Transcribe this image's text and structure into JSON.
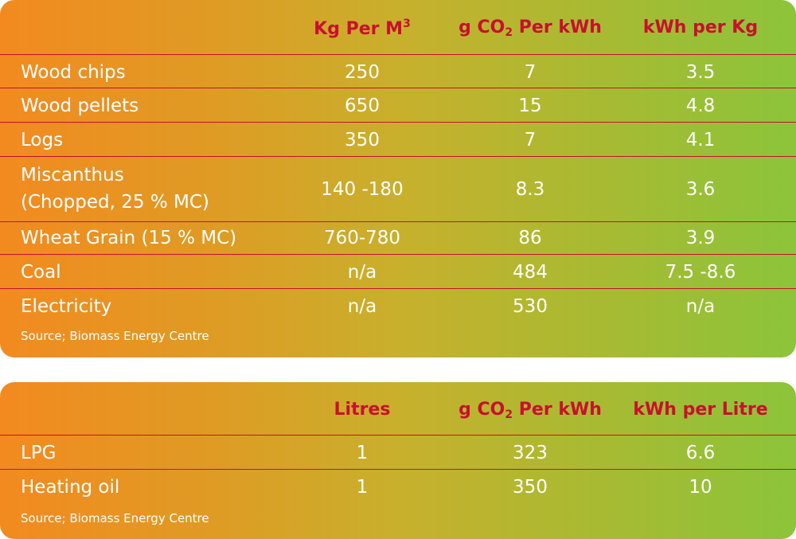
{
  "colors": {
    "header_text": "#c8102e",
    "body_text": "#ffffff",
    "gradient_start": "#f28a20",
    "gradient_end": "#8cc43a"
  },
  "table1": {
    "headers": {
      "col1": {
        "main": "Kg Per M",
        "sup": "3"
      },
      "col2": {
        "pre": "g CO",
        "sub": "2",
        "post": " Per kWh"
      },
      "col3": "kWh per Kg"
    },
    "rows": [
      {
        "label": "Wood chips",
        "c1": "250",
        "c2": "7",
        "c3": "3.5"
      },
      {
        "label": "Wood pellets",
        "c1": "650",
        "c2": "15",
        "c3": "4.8"
      },
      {
        "label": "Logs",
        "c1": "350",
        "c2": "7",
        "c3": "4.1"
      },
      {
        "label": "Miscanthus",
        "label2": "(Chopped, 25 %  MC)",
        "c1": "140 -180",
        "c2": "8.3",
        "c3": "3.6"
      },
      {
        "label": "Wheat Grain (15 %  MC)",
        "c1": "760-780",
        "c2": "86",
        "c3": "3.9"
      },
      {
        "label": "Coal",
        "c1": "n/a",
        "c2": "484",
        "c3": "7.5 -8.6"
      },
      {
        "label": "Electricity",
        "c1": "n/a",
        "c2": "530",
        "c3": "n/a"
      }
    ],
    "source": "Source; Biomass Energy Centre"
  },
  "table2": {
    "headers": {
      "col1": "Litres",
      "col2": {
        "pre": "g CO",
        "sub": "2",
        "post": " Per kWh"
      },
      "col3": "kWh per Litre"
    },
    "rows": [
      {
        "label": "LPG",
        "c1": "1",
        "c2": "323",
        "c3": "6.6"
      },
      {
        "label": "Heating oil",
        "c1": "1",
        "c2": "350",
        "c3": "10"
      }
    ],
    "source": "Source; Biomass Energy Centre"
  }
}
